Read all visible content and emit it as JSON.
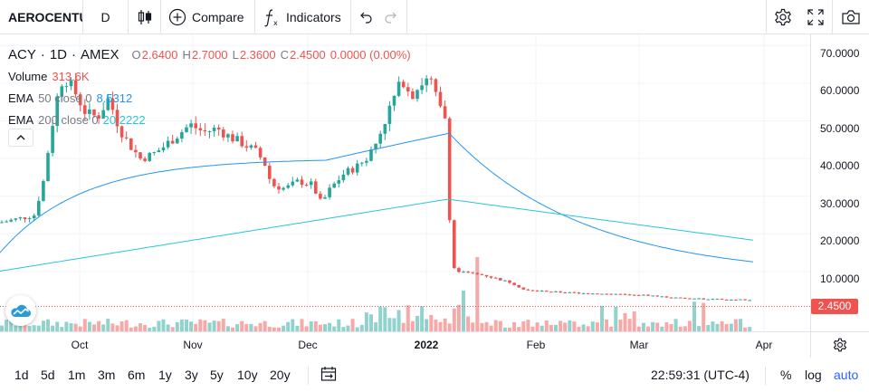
{
  "toolbar": {
    "symbol": "AEROCENTU",
    "interval": "D",
    "compare_label": "Compare",
    "indicators_label": "Indicators"
  },
  "legend": {
    "symbol": "ACY",
    "interval": "1D",
    "exchange": "AMEX",
    "open_label": "O",
    "open_value": "2.6400",
    "high_label": "H",
    "high_value": "2.7000",
    "low_label": "L",
    "low_value": "2.3600",
    "close_label": "C",
    "close_value": "2.4500",
    "change_value": "0.0000 (0.00%)",
    "volume_label": "Volume",
    "volume_value": "313.6K",
    "ema50_name": "EMA",
    "ema50_params": "50 close 0",
    "ema50_value": "8.5312",
    "ema200_name": "EMA",
    "ema200_params": "200 close 0",
    "ema200_value": "20.2222"
  },
  "price_scale": {
    "ticks": [
      "70.0000",
      "60.0000",
      "50.0000",
      "40.0000",
      "30.0000",
      "20.0000",
      "10.0000"
    ],
    "last_price": "2.4500"
  },
  "time_scale": {
    "ticks": [
      "Oct",
      "Nov",
      "Dec",
      "2022",
      "Feb",
      "Mar",
      "Apr"
    ]
  },
  "bottom_bar": {
    "ranges": [
      "1d",
      "5d",
      "1m",
      "3m",
      "6m",
      "1y",
      "3y",
      "5y",
      "10y",
      "20y"
    ],
    "clock": "22:59:31 (UTC-4)",
    "percent": "%",
    "log": "log",
    "auto": "auto"
  },
  "colors": {
    "up": "#26a69a",
    "down": "#ef5350",
    "ema50": "#2196f3",
    "ema200": "#26c6da",
    "accent": "#2962ff"
  }
}
